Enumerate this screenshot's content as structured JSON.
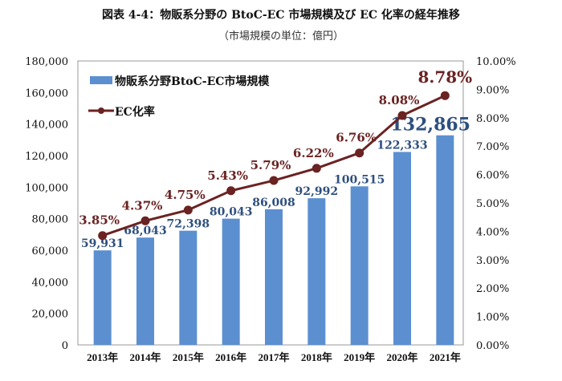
{
  "chart_data": {
    "type": "bar+line",
    "title": "図表 4-4：物販系分野の BtoC-EC 市場規模及び EC 化率の経年推移",
    "subtitle": "（市場規模の単位：億円）",
    "categories": [
      "2013年",
      "2014年",
      "2015年",
      "2016年",
      "2017年",
      "2018年",
      "2019年",
      "2020年",
      "2021年"
    ],
    "series": [
      {
        "name": "物販系分野BtoC-EC市場規模",
        "type": "bar",
        "axis": "left",
        "color": "#5b8fd0",
        "values": [
          59931,
          68043,
          72398,
          80043,
          86008,
          92992,
          100515,
          122333,
          132865
        ],
        "labels": [
          "59,931",
          "68,043",
          "72,398",
          "80,043",
          "86,008",
          "92,992",
          "100,515",
          "122,333",
          "132,865"
        ]
      },
      {
        "name": "EC化率",
        "type": "line",
        "axis": "right",
        "color": "#6b2222",
        "values": [
          3.85,
          4.37,
          4.75,
          5.43,
          5.79,
          6.22,
          6.76,
          8.08,
          8.78
        ],
        "labels": [
          "3.85%",
          "4.37%",
          "4.75%",
          "5.43%",
          "5.79%",
          "6.22%",
          "6.76%",
          "8.08%",
          "8.78%"
        ]
      }
    ],
    "y_left": {
      "range": [
        0,
        180000
      ],
      "ticks": [
        "0",
        "20,000",
        "40,000",
        "60,000",
        "80,000",
        "100,000",
        "120,000",
        "140,000",
        "160,000",
        "180,000"
      ]
    },
    "y_right": {
      "range": [
        0,
        10
      ],
      "ticks": [
        "0.00%",
        "1.00%",
        "2.00%",
        "3.00%",
        "4.00%",
        "5.00%",
        "6.00%",
        "7.00%",
        "8.00%",
        "9.00%",
        "10.00%"
      ]
    },
    "grid": false,
    "legend": "top-left",
    "bar_label_color": "#2e4f7f"
  }
}
